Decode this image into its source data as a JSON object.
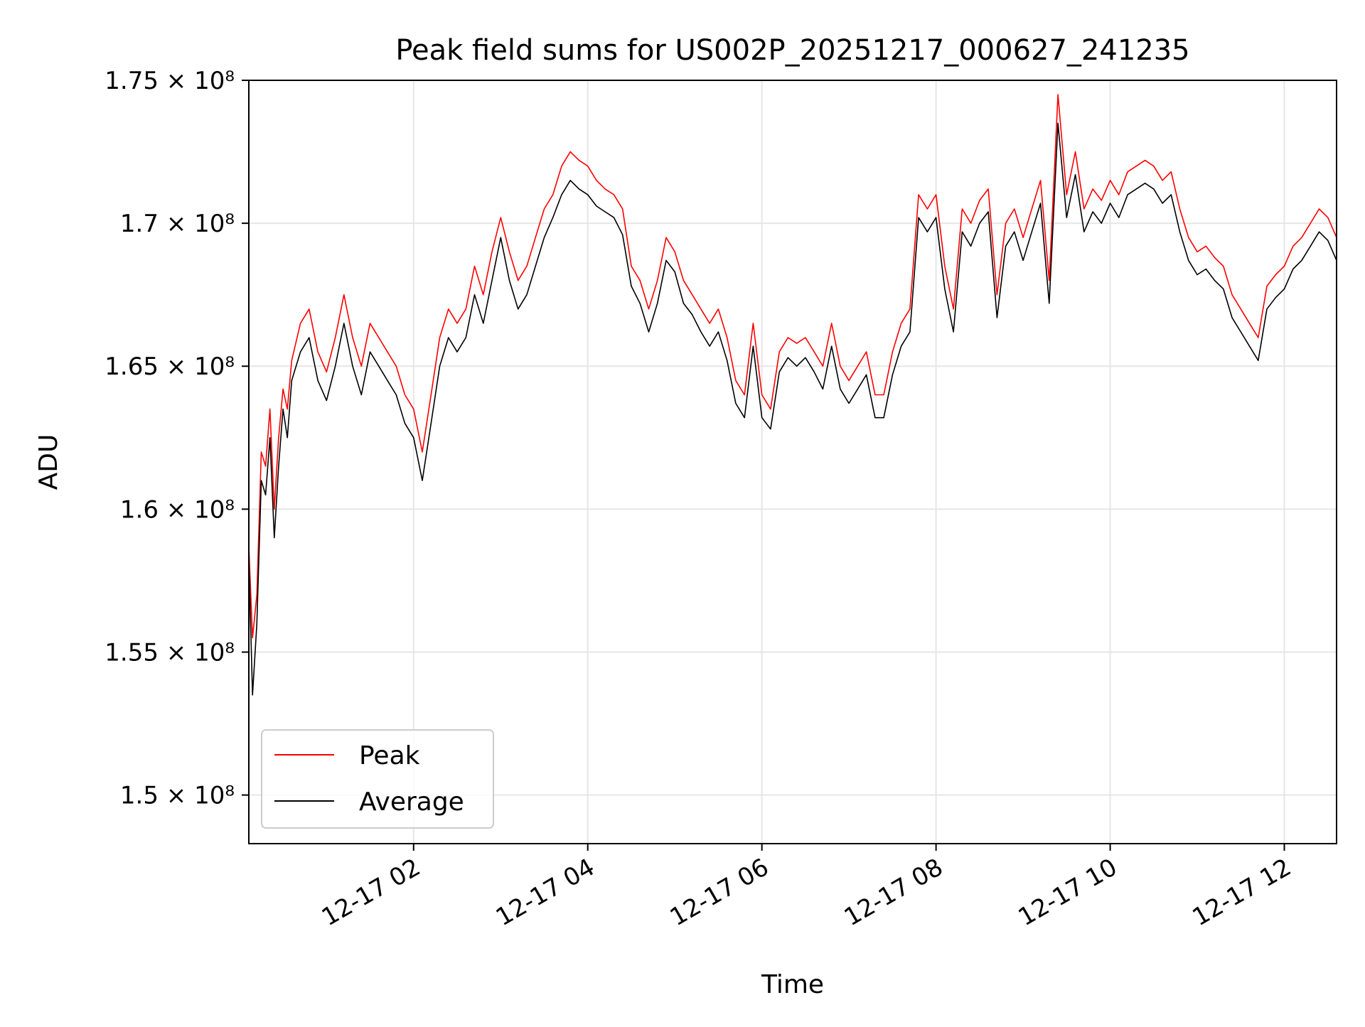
{
  "chart_data": {
    "type": "line",
    "title": "Peak field sums for US002P_20251217_000627_241235",
    "xlabel": "Time",
    "ylabel": "ADU",
    "xlim_hours": [
      0.1075,
      12.6
    ],
    "ylim": [
      148300000,
      175000000
    ],
    "x_ticks": [
      {
        "hour": 2,
        "label": "12-17 02"
      },
      {
        "hour": 4,
        "label": "12-17 04"
      },
      {
        "hour": 6,
        "label": "12-17 06"
      },
      {
        "hour": 8,
        "label": "12-17 08"
      },
      {
        "hour": 10,
        "label": "12-17 10"
      },
      {
        "hour": 12,
        "label": "12-17 12"
      }
    ],
    "y_ticks": [
      {
        "value": 150000000,
        "label": "1.5 × 10⁸"
      },
      {
        "value": 155000000,
        "label": "1.55 × 10⁸"
      },
      {
        "value": 160000000,
        "label": "1.6 × 10⁸"
      },
      {
        "value": 165000000,
        "label": "1.65 × 10⁸"
      },
      {
        "value": 170000000,
        "label": "1.7 × 10⁸"
      },
      {
        "value": 175000000,
        "label": "1.75 × 10⁸"
      }
    ],
    "grid": true,
    "legend_position": "lower-left",
    "series": [
      {
        "name": "Peak",
        "color": "#ff0000",
        "x_hours": [
          0.11,
          0.15,
          0.2,
          0.25,
          0.3,
          0.35,
          0.4,
          0.45,
          0.5,
          0.55,
          0.6,
          0.7,
          0.8,
          0.9,
          1.0,
          1.1,
          1.2,
          1.3,
          1.4,
          1.5,
          1.6,
          1.7,
          1.8,
          1.9,
          2.0,
          2.1,
          2.2,
          2.3,
          2.4,
          2.5,
          2.6,
          2.7,
          2.8,
          2.9,
          3.0,
          3.1,
          3.2,
          3.3,
          3.4,
          3.5,
          3.6,
          3.7,
          3.8,
          3.9,
          4.0,
          4.1,
          4.2,
          4.3,
          4.4,
          4.5,
          4.6,
          4.7,
          4.8,
          4.9,
          5.0,
          5.1,
          5.2,
          5.3,
          5.4,
          5.5,
          5.6,
          5.7,
          5.8,
          5.9,
          6.0,
          6.1,
          6.2,
          6.3,
          6.4,
          6.5,
          6.6,
          6.7,
          6.8,
          6.9,
          7.0,
          7.1,
          7.2,
          7.3,
          7.4,
          7.5,
          7.6,
          7.7,
          7.8,
          7.9,
          8.0,
          8.1,
          8.2,
          8.3,
          8.4,
          8.5,
          8.6,
          8.7,
          8.8,
          8.9,
          9.0,
          9.1,
          9.2,
          9.3,
          9.4,
          9.5,
          9.6,
          9.7,
          9.8,
          9.9,
          10.0,
          10.1,
          10.2,
          10.3,
          10.4,
          10.5,
          10.6,
          10.7,
          10.8,
          10.9,
          11.0,
          11.1,
          11.2,
          11.3,
          11.4,
          11.5,
          11.6,
          11.7,
          11.8,
          11.9,
          12.0,
          12.1,
          12.2,
          12.3,
          12.4,
          12.5,
          12.6
        ],
        "values": [
          158500000,
          155500000,
          157000000,
          162000000,
          161500000,
          163500000,
          160000000,
          162500000,
          164200000,
          163500000,
          165200000,
          166500000,
          167000000,
          165500000,
          164800000,
          166000000,
          167500000,
          166000000,
          165000000,
          166500000,
          166000000,
          165500000,
          165000000,
          164000000,
          163500000,
          162000000,
          164000000,
          166000000,
          167000000,
          166500000,
          167000000,
          168500000,
          167500000,
          169000000,
          170200000,
          169000000,
          168000000,
          168500000,
          169500000,
          170500000,
          171000000,
          172000000,
          172500000,
          172200000,
          172000000,
          171500000,
          171200000,
          171000000,
          170500000,
          168500000,
          168000000,
          167000000,
          168000000,
          169500000,
          169000000,
          168000000,
          167500000,
          167000000,
          166500000,
          167000000,
          166000000,
          164500000,
          164000000,
          166500000,
          164000000,
          163500000,
          165500000,
          166000000,
          165800000,
          166000000,
          165500000,
          165000000,
          166500000,
          165000000,
          164500000,
          165000000,
          165500000,
          164000000,
          164000000,
          165500000,
          166500000,
          167000000,
          171000000,
          170500000,
          171000000,
          168500000,
          167000000,
          170500000,
          170000000,
          170800000,
          171200000,
          167500000,
          170000000,
          170500000,
          169500000,
          170500000,
          171500000,
          168000000,
          174500000,
          171000000,
          172500000,
          170500000,
          171200000,
          170800000,
          171500000,
          171000000,
          171800000,
          172000000,
          172200000,
          172000000,
          171500000,
          171800000,
          170500000,
          169500000,
          169000000,
          169200000,
          168800000,
          168500000,
          167500000,
          167000000,
          166500000,
          166000000,
          167800000,
          168200000,
          168500000,
          169200000,
          169500000,
          170000000,
          170500000,
          170200000,
          169500000
        ]
      },
      {
        "name": "Average",
        "color": "#000000",
        "x_hours": [
          0.11,
          0.15,
          0.2,
          0.25,
          0.3,
          0.35,
          0.4,
          0.45,
          0.5,
          0.55,
          0.6,
          0.7,
          0.8,
          0.9,
          1.0,
          1.1,
          1.2,
          1.3,
          1.4,
          1.5,
          1.6,
          1.7,
          1.8,
          1.9,
          2.0,
          2.1,
          2.2,
          2.3,
          2.4,
          2.5,
          2.6,
          2.7,
          2.8,
          2.9,
          3.0,
          3.1,
          3.2,
          3.3,
          3.4,
          3.5,
          3.6,
          3.7,
          3.8,
          3.9,
          4.0,
          4.1,
          4.2,
          4.3,
          4.4,
          4.5,
          4.6,
          4.7,
          4.8,
          4.9,
          5.0,
          5.1,
          5.2,
          5.3,
          5.4,
          5.5,
          5.6,
          5.7,
          5.8,
          5.9,
          6.0,
          6.1,
          6.2,
          6.3,
          6.4,
          6.5,
          6.6,
          6.7,
          6.8,
          6.9,
          7.0,
          7.1,
          7.2,
          7.3,
          7.4,
          7.5,
          7.6,
          7.7,
          7.8,
          7.9,
          8.0,
          8.1,
          8.2,
          8.3,
          8.4,
          8.5,
          8.6,
          8.7,
          8.8,
          8.9,
          9.0,
          9.1,
          9.2,
          9.3,
          9.4,
          9.5,
          9.6,
          9.7,
          9.8,
          9.9,
          10.0,
          10.1,
          10.2,
          10.3,
          10.4,
          10.5,
          10.6,
          10.7,
          10.8,
          10.9,
          11.0,
          11.1,
          11.2,
          11.3,
          11.4,
          11.5,
          11.6,
          11.7,
          11.8,
          11.9,
          12.0,
          12.1,
          12.2,
          12.3,
          12.4,
          12.5,
          12.6
        ],
        "values": [
          158000000,
          153500000,
          156000000,
          161000000,
          160500000,
          162500000,
          159000000,
          161500000,
          163500000,
          162500000,
          164500000,
          165500000,
          166000000,
          164500000,
          163800000,
          165000000,
          166500000,
          165000000,
          164000000,
          165500000,
          165000000,
          164500000,
          164000000,
          163000000,
          162500000,
          161000000,
          163000000,
          165000000,
          166000000,
          165500000,
          166000000,
          167500000,
          166500000,
          168000000,
          169500000,
          168000000,
          167000000,
          167500000,
          168500000,
          169500000,
          170200000,
          171000000,
          171500000,
          171200000,
          171000000,
          170600000,
          170400000,
          170200000,
          169600000,
          167800000,
          167200000,
          166200000,
          167200000,
          168700000,
          168300000,
          167200000,
          166800000,
          166200000,
          165700000,
          166200000,
          165200000,
          163700000,
          163200000,
          165700000,
          163200000,
          162800000,
          164800000,
          165300000,
          165000000,
          165300000,
          164800000,
          164200000,
          165700000,
          164200000,
          163700000,
          164200000,
          164700000,
          163200000,
          163200000,
          164700000,
          165700000,
          166200000,
          170200000,
          169700000,
          170200000,
          167700000,
          166200000,
          169700000,
          169200000,
          170000000,
          170400000,
          166700000,
          169200000,
          169700000,
          168700000,
          169700000,
          170700000,
          167200000,
          173500000,
          170200000,
          171700000,
          169700000,
          170400000,
          170000000,
          170700000,
          170200000,
          171000000,
          171200000,
          171400000,
          171200000,
          170700000,
          171000000,
          169700000,
          168700000,
          168200000,
          168400000,
          168000000,
          167700000,
          166700000,
          166200000,
          165700000,
          165200000,
          167000000,
          167400000,
          167700000,
          168400000,
          168700000,
          169200000,
          169700000,
          169400000,
          168700000
        ]
      }
    ]
  }
}
